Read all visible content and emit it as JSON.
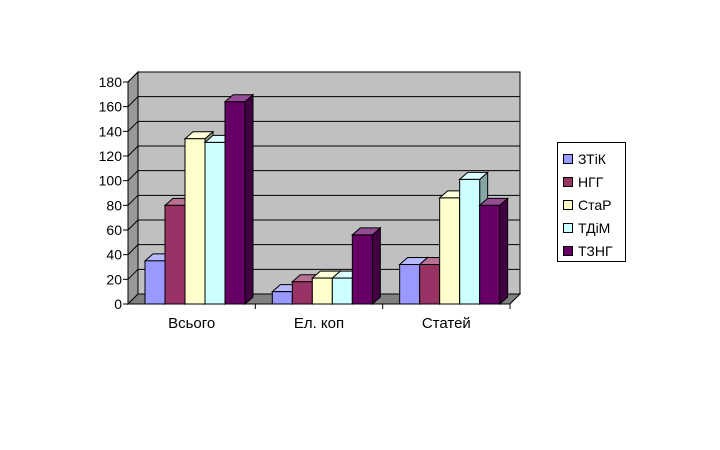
{
  "chart_data": {
    "type": "bar",
    "categories": [
      "Всього",
      "Ел. коп",
      "Статей"
    ],
    "series": [
      {
        "name": "ЗТіК",
        "values": [
          35,
          10,
          32
        ],
        "color": "#9999ff"
      },
      {
        "name": "НГГ",
        "values": [
          80,
          18,
          32
        ],
        "color": "#993366"
      },
      {
        "name": "СтаР",
        "values": [
          134,
          21,
          86
        ],
        "color": "#ffffcc"
      },
      {
        "name": "ТДіМ",
        "values": [
          131,
          21,
          101
        ],
        "color": "#ccffff"
      },
      {
        "name": "ТЗНГ",
        "values": [
          164,
          56,
          80
        ],
        "color": "#660066"
      }
    ],
    "ylim": [
      0,
      180
    ],
    "yticks": [
      "0",
      "20",
      "40",
      "60",
      "80",
      "100",
      "120",
      "140",
      "160",
      "180"
    ],
    "grid": true,
    "legend": "right",
    "wall_color": "#c0c0c0",
    "floor_color": "#808080"
  }
}
